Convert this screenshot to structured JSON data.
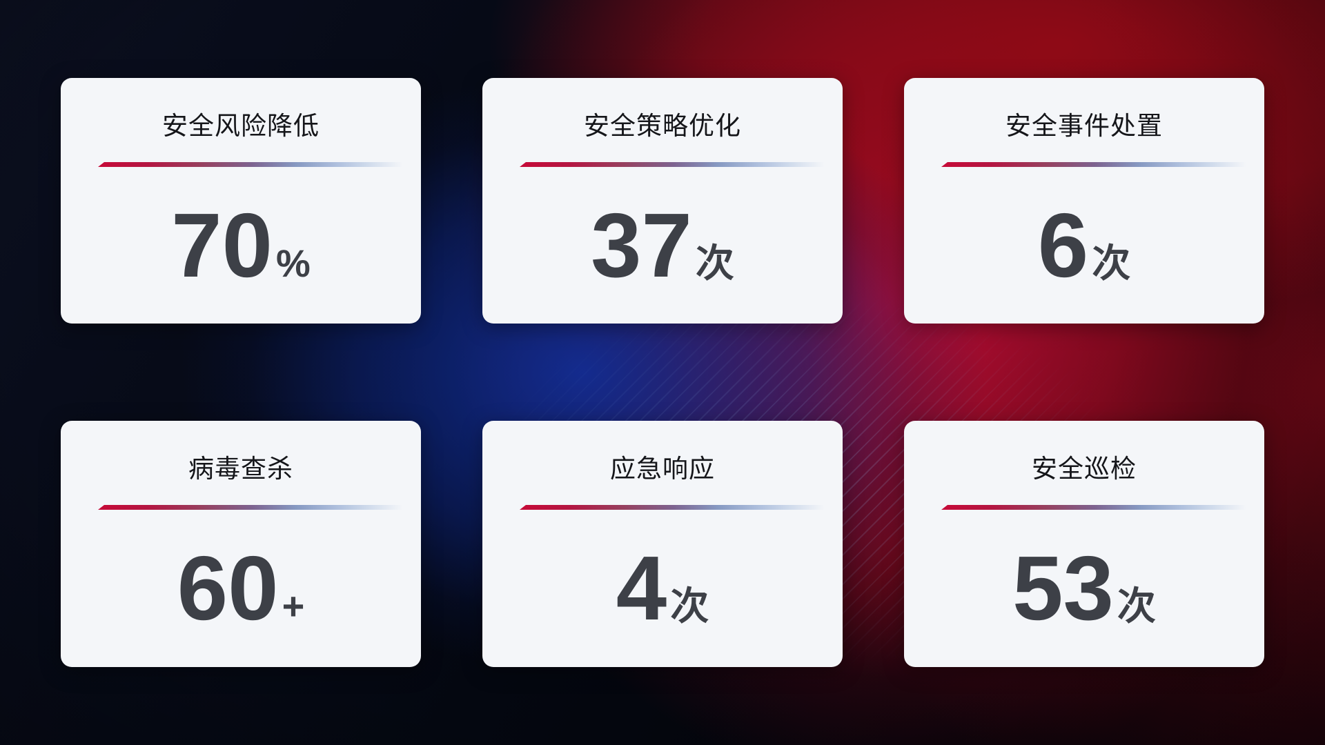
{
  "colors": {
    "card_background": "#f4f6f9",
    "title_text": "#15161a",
    "value_text": "#3d4047",
    "divider_gradient_start_red": "#c60a38",
    "divider_gradient_end_blue": "#aebfdd",
    "background_dark_navy": "#070b18",
    "background_blue_glow": "#112e98",
    "background_red_glow": "#c60e3a"
  },
  "cards": [
    {
      "title": "安全风险降低",
      "value": "70",
      "unit": "%"
    },
    {
      "title": "安全策略优化",
      "value": "37",
      "unit": "次"
    },
    {
      "title": "安全事件处置",
      "value": "6",
      "unit": "次"
    },
    {
      "title": "病毒查杀",
      "value": "60",
      "unit": "+"
    },
    {
      "title": "应急响应",
      "value": "4",
      "unit": "次"
    },
    {
      "title": "安全巡检",
      "value": "53",
      "unit": "次"
    }
  ]
}
